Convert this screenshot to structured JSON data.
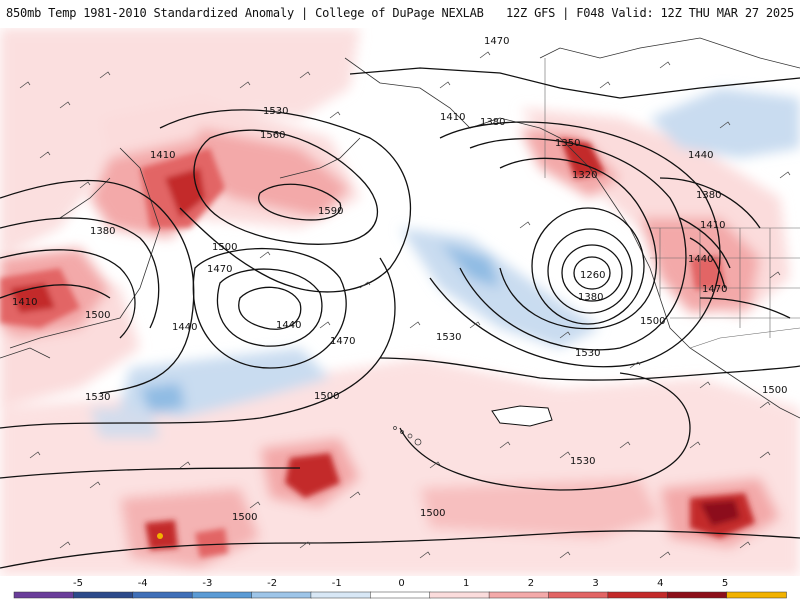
{
  "header": {
    "title_left": "850mb Temp 1981-2010 Standardized Anomaly | College of DuPage NEXLAB",
    "title_right": "12Z GFS | F048 Valid: 12Z THU MAR 27 2025"
  },
  "colorbar": {
    "ticks": [
      "-5",
      "-4",
      "-3",
      "-2",
      "-1",
      "0",
      "1",
      "2",
      "3",
      "4",
      "5"
    ],
    "colors": [
      "#6a3d9a",
      "#2c4a8a",
      "#3f6fb8",
      "#5b9bd5",
      "#9ec5e8",
      "#d8e7f5",
      "#ffffff",
      "#fbdcdc",
      "#f3a9a9",
      "#e26565",
      "#c32a2a",
      "#8c0f1a",
      "#f2b200"
    ]
  },
  "contour_labels": [
    {
      "id": "l1470a",
      "text": "1470"
    },
    {
      "id": "l1530a",
      "text": "1530"
    },
    {
      "id": "l1560",
      "text": "1560"
    },
    {
      "id": "l1590",
      "text": "1590"
    },
    {
      "id": "l1410a",
      "text": "1410"
    },
    {
      "id": "l1380a",
      "text": "1380"
    },
    {
      "id": "l1410b",
      "text": "1410"
    },
    {
      "id": "l1500a",
      "text": "1500"
    },
    {
      "id": "l1470b",
      "text": "1470"
    },
    {
      "id": "l1440a",
      "text": "1440"
    },
    {
      "id": "l1440b",
      "text": "1440"
    },
    {
      "id": "l1470c",
      "text": "1470"
    },
    {
      "id": "l1500b",
      "text": "1500"
    },
    {
      "id": "l1530b",
      "text": "1530"
    },
    {
      "id": "l1500c",
      "text": "1500"
    },
    {
      "id": "l1410c",
      "text": "1410"
    },
    {
      "id": "l1380b",
      "text": "1380"
    },
    {
      "id": "l1350",
      "text": "1350"
    },
    {
      "id": "l1320",
      "text": "1320"
    },
    {
      "id": "l1260",
      "text": "1260"
    },
    {
      "id": "l1380c",
      "text": "1380"
    },
    {
      "id": "l1500d",
      "text": "1500"
    },
    {
      "id": "l1530c",
      "text": "1530"
    },
    {
      "id": "l1440c",
      "text": "1440"
    },
    {
      "id": "l1380d",
      "text": "1380"
    },
    {
      "id": "l1410d",
      "text": "1410"
    },
    {
      "id": "l1440d",
      "text": "1440"
    },
    {
      "id": "l1470d",
      "text": "1470"
    },
    {
      "id": "l1500e",
      "text": "1500"
    },
    {
      "id": "l1530d",
      "text": "1530"
    },
    {
      "id": "l1500f",
      "text": "1500"
    },
    {
      "id": "l1500g",
      "text": "1500"
    },
    {
      "id": "l1530e",
      "text": "1530"
    }
  ]
}
